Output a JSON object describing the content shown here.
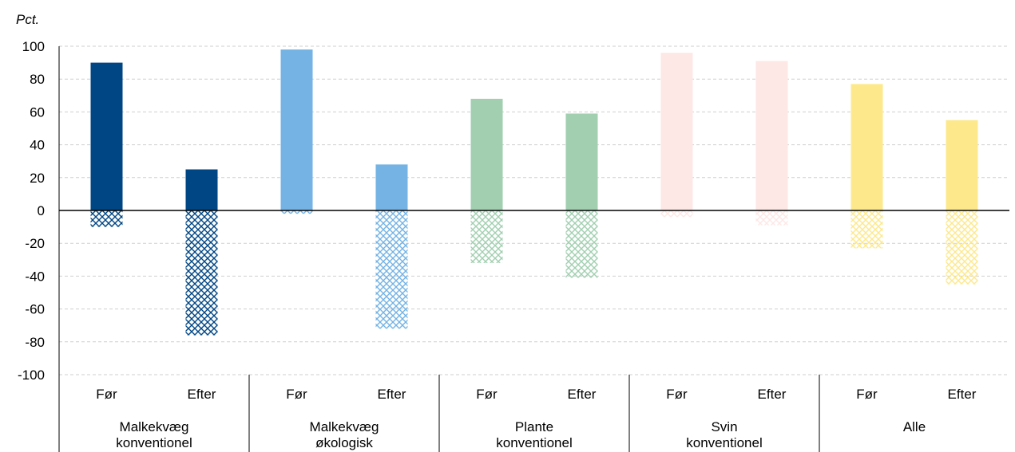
{
  "chart_data": {
    "type": "bar",
    "ylabel": "Pct.",
    "ylim": [
      -100,
      100
    ],
    "yticks": [
      100,
      80,
      60,
      40,
      20,
      0,
      -20,
      -40,
      -60,
      -80,
      -100
    ],
    "grid": true,
    "groups": [
      {
        "label_lines": [
          "Malkekvæg",
          "konventionel"
        ],
        "color": "#004684",
        "bars": [
          {
            "label": "Før",
            "positive": 90,
            "negative": -10
          },
          {
            "label": "Efter",
            "positive": 25,
            "negative": -76
          }
        ]
      },
      {
        "label_lines": [
          "Malkekvæg",
          "økologisk"
        ],
        "color": "#74b3e4",
        "bars": [
          {
            "label": "Før",
            "positive": 98,
            "negative": -2
          },
          {
            "label": "Efter",
            "positive": 28,
            "negative": -72
          }
        ]
      },
      {
        "label_lines": [
          "Plante",
          "konventionel"
        ],
        "color": "#a1cfb0",
        "bars": [
          {
            "label": "Før",
            "positive": 68,
            "negative": -32
          },
          {
            "label": "Efter",
            "positive": 59,
            "negative": -41
          }
        ]
      },
      {
        "label_lines": [
          "Svin",
          "konventionel"
        ],
        "color": "#fde8e6",
        "bars": [
          {
            "label": "Før",
            "positive": 96,
            "negative": -4
          },
          {
            "label": "Efter",
            "positive": 91,
            "negative": -9
          }
        ]
      },
      {
        "label_lines": [
          "Alle"
        ],
        "color": "#fde98c",
        "bars": [
          {
            "label": "Før",
            "positive": 77,
            "negative": -23
          },
          {
            "label": "Efter",
            "positive": 55,
            "negative": -45
          }
        ]
      }
    ]
  }
}
